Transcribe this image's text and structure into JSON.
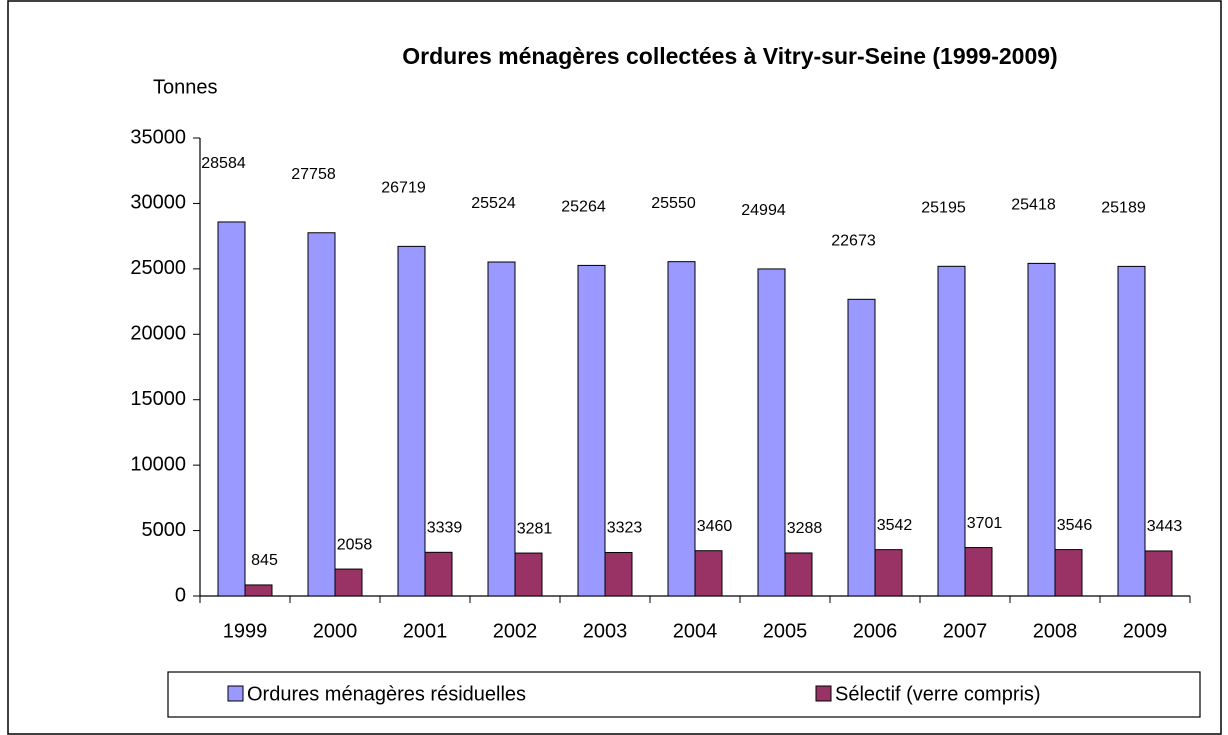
{
  "chart_data": {
    "type": "bar",
    "title": "Ordures ménagères collectées à Vitry-sur-Seine (1999-2009)",
    "y_label": "Tonnes",
    "categories": [
      "1999",
      "2000",
      "2001",
      "2002",
      "2003",
      "2004",
      "2005",
      "2006",
      "2007",
      "2008",
      "2009"
    ],
    "series": [
      {
        "name": "Ordures ménagères résiduelles",
        "color": "#9999ff",
        "values": [
          28584,
          27758,
          26719,
          25524,
          25264,
          25550,
          24994,
          22673,
          25195,
          25418,
          25189
        ]
      },
      {
        "name": "Sélectif (verre compris)",
        "color": "#993366",
        "values": [
          845,
          2058,
          3339,
          3281,
          3323,
          3460,
          3288,
          3542,
          3701,
          3546,
          3443
        ]
      }
    ],
    "ylim": [
      0,
      35000
    ],
    "yticks": [
      0,
      5000,
      10000,
      15000,
      20000,
      25000,
      30000,
      35000
    ],
    "grid": false,
    "legend": "bottom"
  }
}
